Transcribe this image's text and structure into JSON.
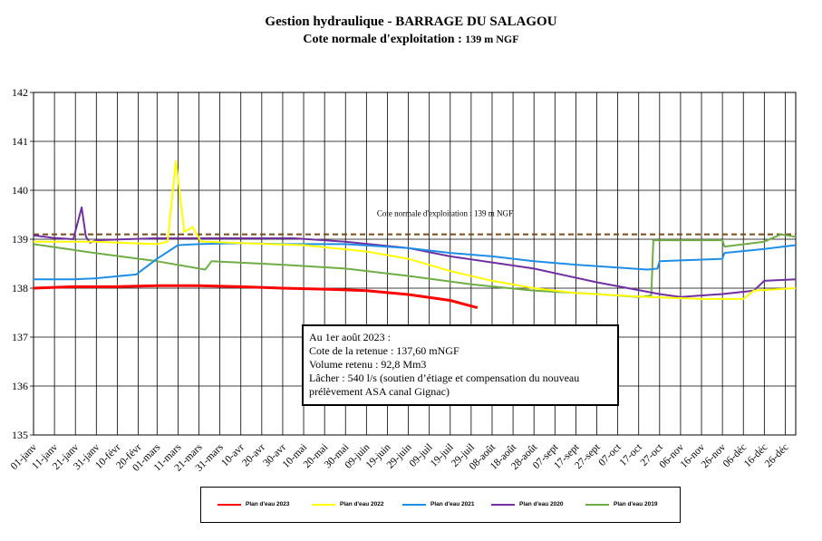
{
  "title": "Gestion hydraulique - BARRAGE DU SALAGOU",
  "subtitle_prefix": "Cote normale d'exploitation : ",
  "subtitle_value": "139 m NGF",
  "info_box": {
    "line1": "Au 1er août 2023 :",
    "line2": "Cote de la retenue : 137,60 mNGF",
    "line3": "Volume retenu : 92,8 Mm3",
    "line4": "Lâcher : 540 l/s (soutien d’étiage et compensation du nouveau",
    "line5": "prélèvement ASA canal Gignac)"
  },
  "chart_data": {
    "type": "line",
    "title": "Gestion hydraulique - BARRAGE DU SALAGOU",
    "subtitle": "Cote normale d'exploitation : 139 m NGF",
    "xlabel": "",
    "ylabel": "",
    "x_unit": "day of year",
    "ylim": [
      135,
      142
    ],
    "xlim": [
      1,
      365
    ],
    "grid": true,
    "legend_position": "bottom",
    "y_ticks": [
      "135",
      "136",
      "137",
      "138",
      "139",
      "140",
      "141",
      "142"
    ],
    "x_ticks": [
      {
        "day": 1,
        "label": "01-janv"
      },
      {
        "day": 11,
        "label": "11-janv"
      },
      {
        "day": 21,
        "label": "21-janv"
      },
      {
        "day": 31,
        "label": "31-janv"
      },
      {
        "day": 41,
        "label": "10-févr"
      },
      {
        "day": 51,
        "label": "20-févr"
      },
      {
        "day": 60,
        "label": "01-mars"
      },
      {
        "day": 70,
        "label": "11-mars"
      },
      {
        "day": 80,
        "label": "21-mars"
      },
      {
        "day": 90,
        "label": "31-mars"
      },
      {
        "day": 100,
        "label": "10-avr"
      },
      {
        "day": 110,
        "label": "20-avr"
      },
      {
        "day": 120,
        "label": "30-avr"
      },
      {
        "day": 130,
        "label": "10-mai"
      },
      {
        "day": 140,
        "label": "20-mai"
      },
      {
        "day": 150,
        "label": "30-mai"
      },
      {
        "day": 160,
        "label": "09-juin"
      },
      {
        "day": 170,
        "label": "19-juin"
      },
      {
        "day": 180,
        "label": "29-juin"
      },
      {
        "day": 190,
        "label": "09-juil"
      },
      {
        "day": 200,
        "label": "19-juil"
      },
      {
        "day": 210,
        "label": "29-juil"
      },
      {
        "day": 220,
        "label": "08-août"
      },
      {
        "day": 230,
        "label": "18-août"
      },
      {
        "day": 240,
        "label": "28-août"
      },
      {
        "day": 250,
        "label": "07-sept"
      },
      {
        "day": 260,
        "label": "17-sept"
      },
      {
        "day": 270,
        "label": "27-sept"
      },
      {
        "day": 280,
        "label": "07-oct"
      },
      {
        "day": 290,
        "label": "17-oct"
      },
      {
        "day": 300,
        "label": "27-oct"
      },
      {
        "day": 310,
        "label": "06-nov"
      },
      {
        "day": 320,
        "label": "16-nov"
      },
      {
        "day": 330,
        "label": "26-nov"
      },
      {
        "day": 340,
        "label": "06-déc"
      },
      {
        "day": 350,
        "label": "16-déc"
      },
      {
        "day": 360,
        "label": "26-déc"
      }
    ],
    "reference_line": {
      "label": "Cote normale d'exploitation : 139 m NGF",
      "value": 139.1,
      "color": "#7a4a1a"
    },
    "series": [
      {
        "name": "Plan d'eau 2019",
        "color": "#70ad47",
        "x": [
          1,
          30,
          60,
          83,
          86,
          120,
          150,
          180,
          210,
          240,
          270,
          290,
          296,
          297,
          330,
          331,
          350,
          358,
          365
        ],
        "y": [
          138.9,
          138.72,
          138.55,
          138.38,
          138.55,
          138.48,
          138.4,
          138.25,
          138.08,
          137.95,
          137.88,
          137.82,
          137.85,
          138.98,
          138.98,
          138.85,
          138.95,
          139.1,
          139.05
        ]
      },
      {
        "name": "Plan d'eau 2020",
        "color": "#7030a0",
        "x": [
          1,
          10,
          20,
          24,
          26,
          28,
          31,
          60,
          90,
          110,
          125,
          150,
          180,
          200,
          240,
          270,
          300,
          310,
          330,
          345,
          350,
          365
        ],
        "y": [
          139.08,
          139.03,
          139.0,
          139.65,
          139.05,
          138.93,
          138.98,
          139.02,
          139.02,
          139.02,
          139.02,
          138.95,
          138.82,
          138.65,
          138.4,
          138.12,
          137.88,
          137.82,
          137.88,
          137.95,
          138.15,
          138.18
        ]
      },
      {
        "name": "Plan d'eau 2021",
        "color": "#1f8ee6",
        "x": [
          1,
          20,
          30,
          50,
          60,
          70,
          80,
          100,
          120,
          150,
          180,
          200,
          220,
          240,
          260,
          280,
          294,
          299,
          300,
          330,
          331,
          350,
          365
        ],
        "y": [
          138.18,
          138.18,
          138.2,
          138.28,
          138.6,
          138.88,
          138.9,
          138.92,
          138.9,
          138.9,
          138.82,
          138.72,
          138.65,
          138.55,
          138.48,
          138.42,
          138.38,
          138.4,
          138.55,
          138.6,
          138.72,
          138.8,
          138.88
        ]
      },
      {
        "name": "Plan d'eau 2022",
        "color": "#ffff00",
        "x": [
          1,
          30,
          60,
          65,
          69,
          73,
          77,
          81,
          84,
          100,
          130,
          160,
          180,
          200,
          220,
          240,
          260,
          290,
          320,
          340,
          345,
          365
        ],
        "y": [
          138.95,
          138.95,
          138.9,
          138.95,
          140.6,
          139.15,
          139.25,
          138.95,
          138.95,
          138.92,
          138.88,
          138.75,
          138.6,
          138.35,
          138.15,
          138.0,
          137.9,
          137.83,
          137.78,
          137.78,
          137.95,
          138.0
        ]
      },
      {
        "name": "Plan d'eau 2023",
        "color": "#ff0000",
        "x": [
          1,
          20,
          40,
          60,
          80,
          100,
          120,
          140,
          160,
          180,
          200,
          213
        ],
        "y": [
          138.0,
          138.03,
          138.03,
          138.05,
          138.05,
          138.03,
          138.0,
          137.98,
          137.95,
          137.87,
          137.75,
          137.6
        ]
      }
    ]
  }
}
